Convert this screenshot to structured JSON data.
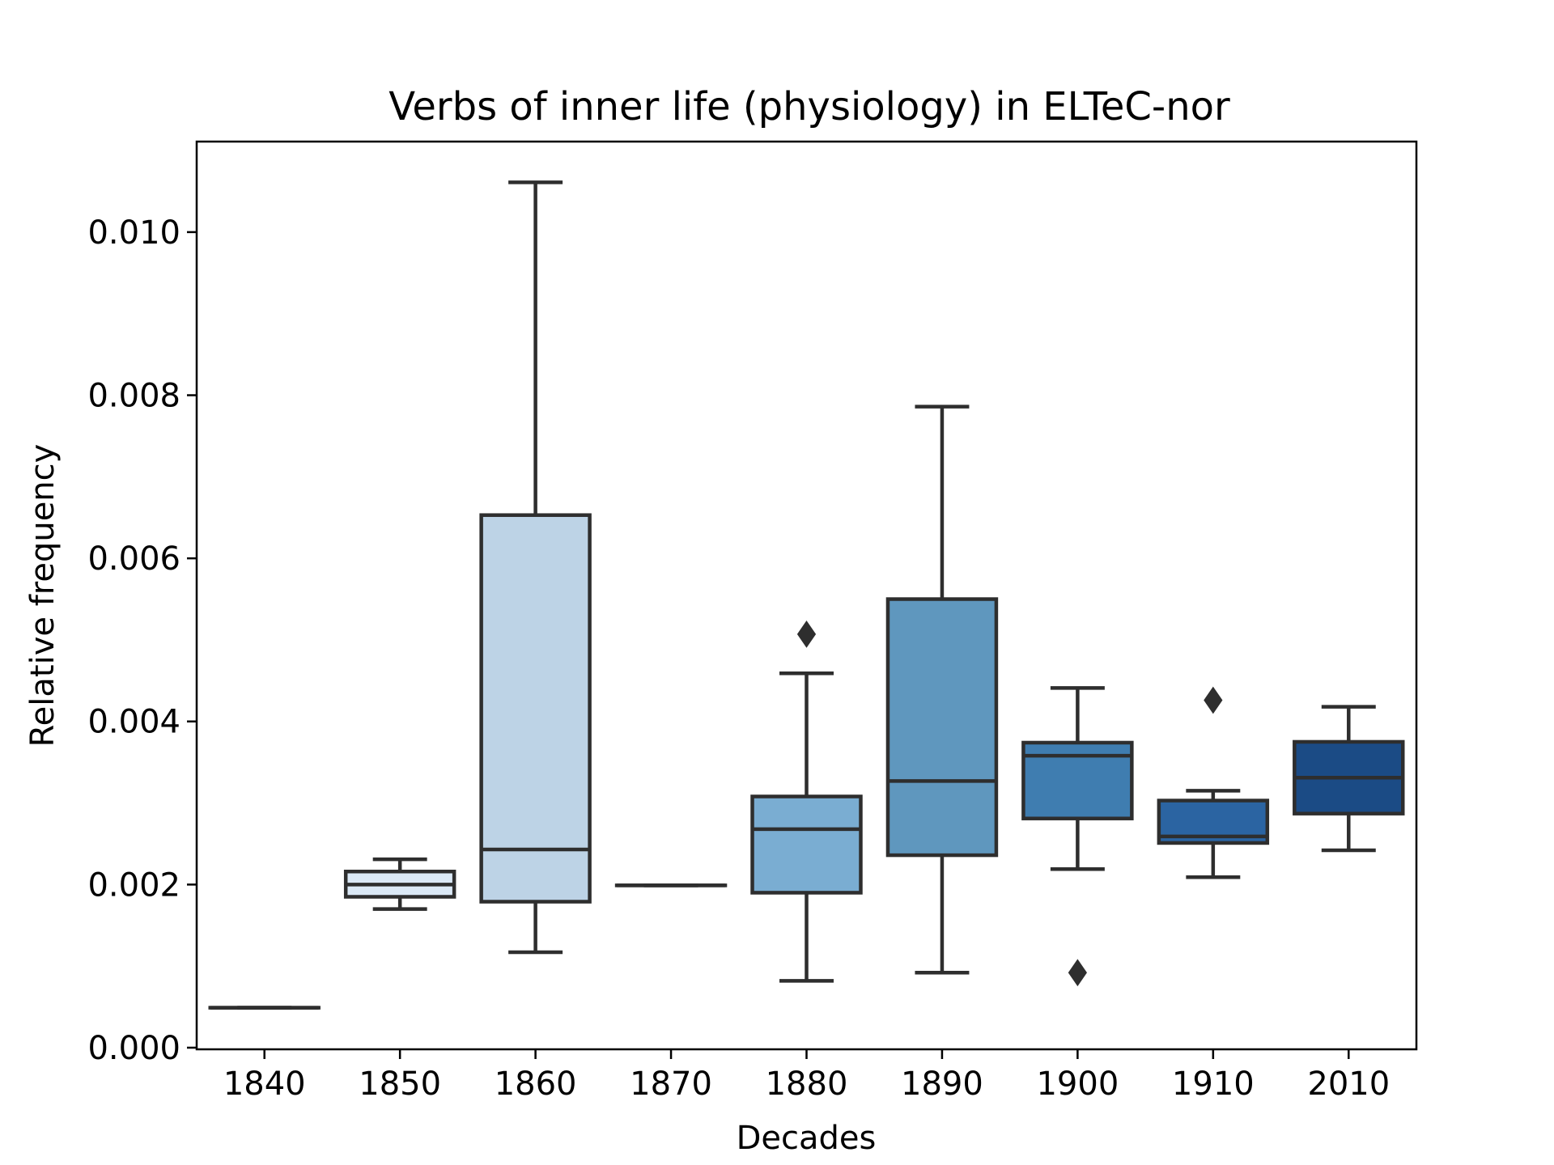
{
  "chart_data": {
    "type": "box",
    "title": "Verbs of inner life (physiology) in ELTeC-nor",
    "xlabel": "Decades",
    "ylabel": "Relative frequency",
    "ylim": [
      -2e-05,
      0.01111
    ],
    "yticks": [
      {
        "value": 0.0,
        "label": "0.000"
      },
      {
        "value": 0.002,
        "label": "0.002"
      },
      {
        "value": 0.004,
        "label": "0.004"
      },
      {
        "value": 0.006,
        "label": "0.006"
      },
      {
        "value": 0.008,
        "label": "0.008"
      },
      {
        "value": 0.01,
        "label": "0.010"
      }
    ],
    "grid": false,
    "legend": "none",
    "categories": [
      "1840",
      "1850",
      "1860",
      "1870",
      "1880",
      "1890",
      "1900",
      "1910",
      "2010"
    ],
    "boxes": [
      {
        "category": "1840",
        "whisker_low": 0.00049,
        "q1": 0.00049,
        "median": 0.00049,
        "q3": 0.00049,
        "whisker_high": 0.00049,
        "outliers": [],
        "color": "#dbe9f6"
      },
      {
        "category": "1850",
        "whisker_low": 0.0017,
        "q1": 0.00185,
        "median": 0.002,
        "q3": 0.00216,
        "whisker_high": 0.00231,
        "outliers": [],
        "color": "#dbe9f6"
      },
      {
        "category": "1860",
        "whisker_low": 0.00117,
        "q1": 0.00179,
        "median": 0.00243,
        "q3": 0.00653,
        "whisker_high": 0.01061,
        "outliers": [],
        "color": "#bdd3e6"
      },
      {
        "category": "1870",
        "whisker_low": 0.00199,
        "q1": 0.00199,
        "median": 0.00199,
        "q3": 0.00199,
        "whisker_high": 0.00199,
        "outliers": [],
        "color": "#9ec8e2"
      },
      {
        "category": "1880",
        "whisker_low": 0.00082,
        "q1": 0.0019,
        "median": 0.00268,
        "q3": 0.00308,
        "whisker_high": 0.00459,
        "outliers": [
          0.00507
        ],
        "color": "#7aadd2"
      },
      {
        "category": "1890",
        "whisker_low": 0.00092,
        "q1": 0.00236,
        "median": 0.00327,
        "q3": 0.0055,
        "whisker_high": 0.00786,
        "outliers": [],
        "color": "#5f97be"
      },
      {
        "category": "1900",
        "whisker_low": 0.00219,
        "q1": 0.00281,
        "median": 0.00358,
        "q3": 0.00374,
        "whisker_high": 0.00441,
        "outliers": [
          0.00092
        ],
        "color": "#3f7db0"
      },
      {
        "category": "1910",
        "whisker_low": 0.00209,
        "q1": 0.00251,
        "median": 0.00259,
        "q3": 0.00303,
        "whisker_high": 0.00315,
        "outliers": [
          0.00426
        ],
        "color": "#2b64a2"
      },
      {
        "category": "2010",
        "whisker_low": 0.00242,
        "q1": 0.00287,
        "median": 0.00331,
        "q3": 0.00375,
        "whisker_high": 0.00418,
        "outliers": [],
        "color": "#1b4b85"
      }
    ],
    "colors": {
      "line": "#2e2e2e",
      "axis": "#000000",
      "background": "#ffffff"
    }
  }
}
